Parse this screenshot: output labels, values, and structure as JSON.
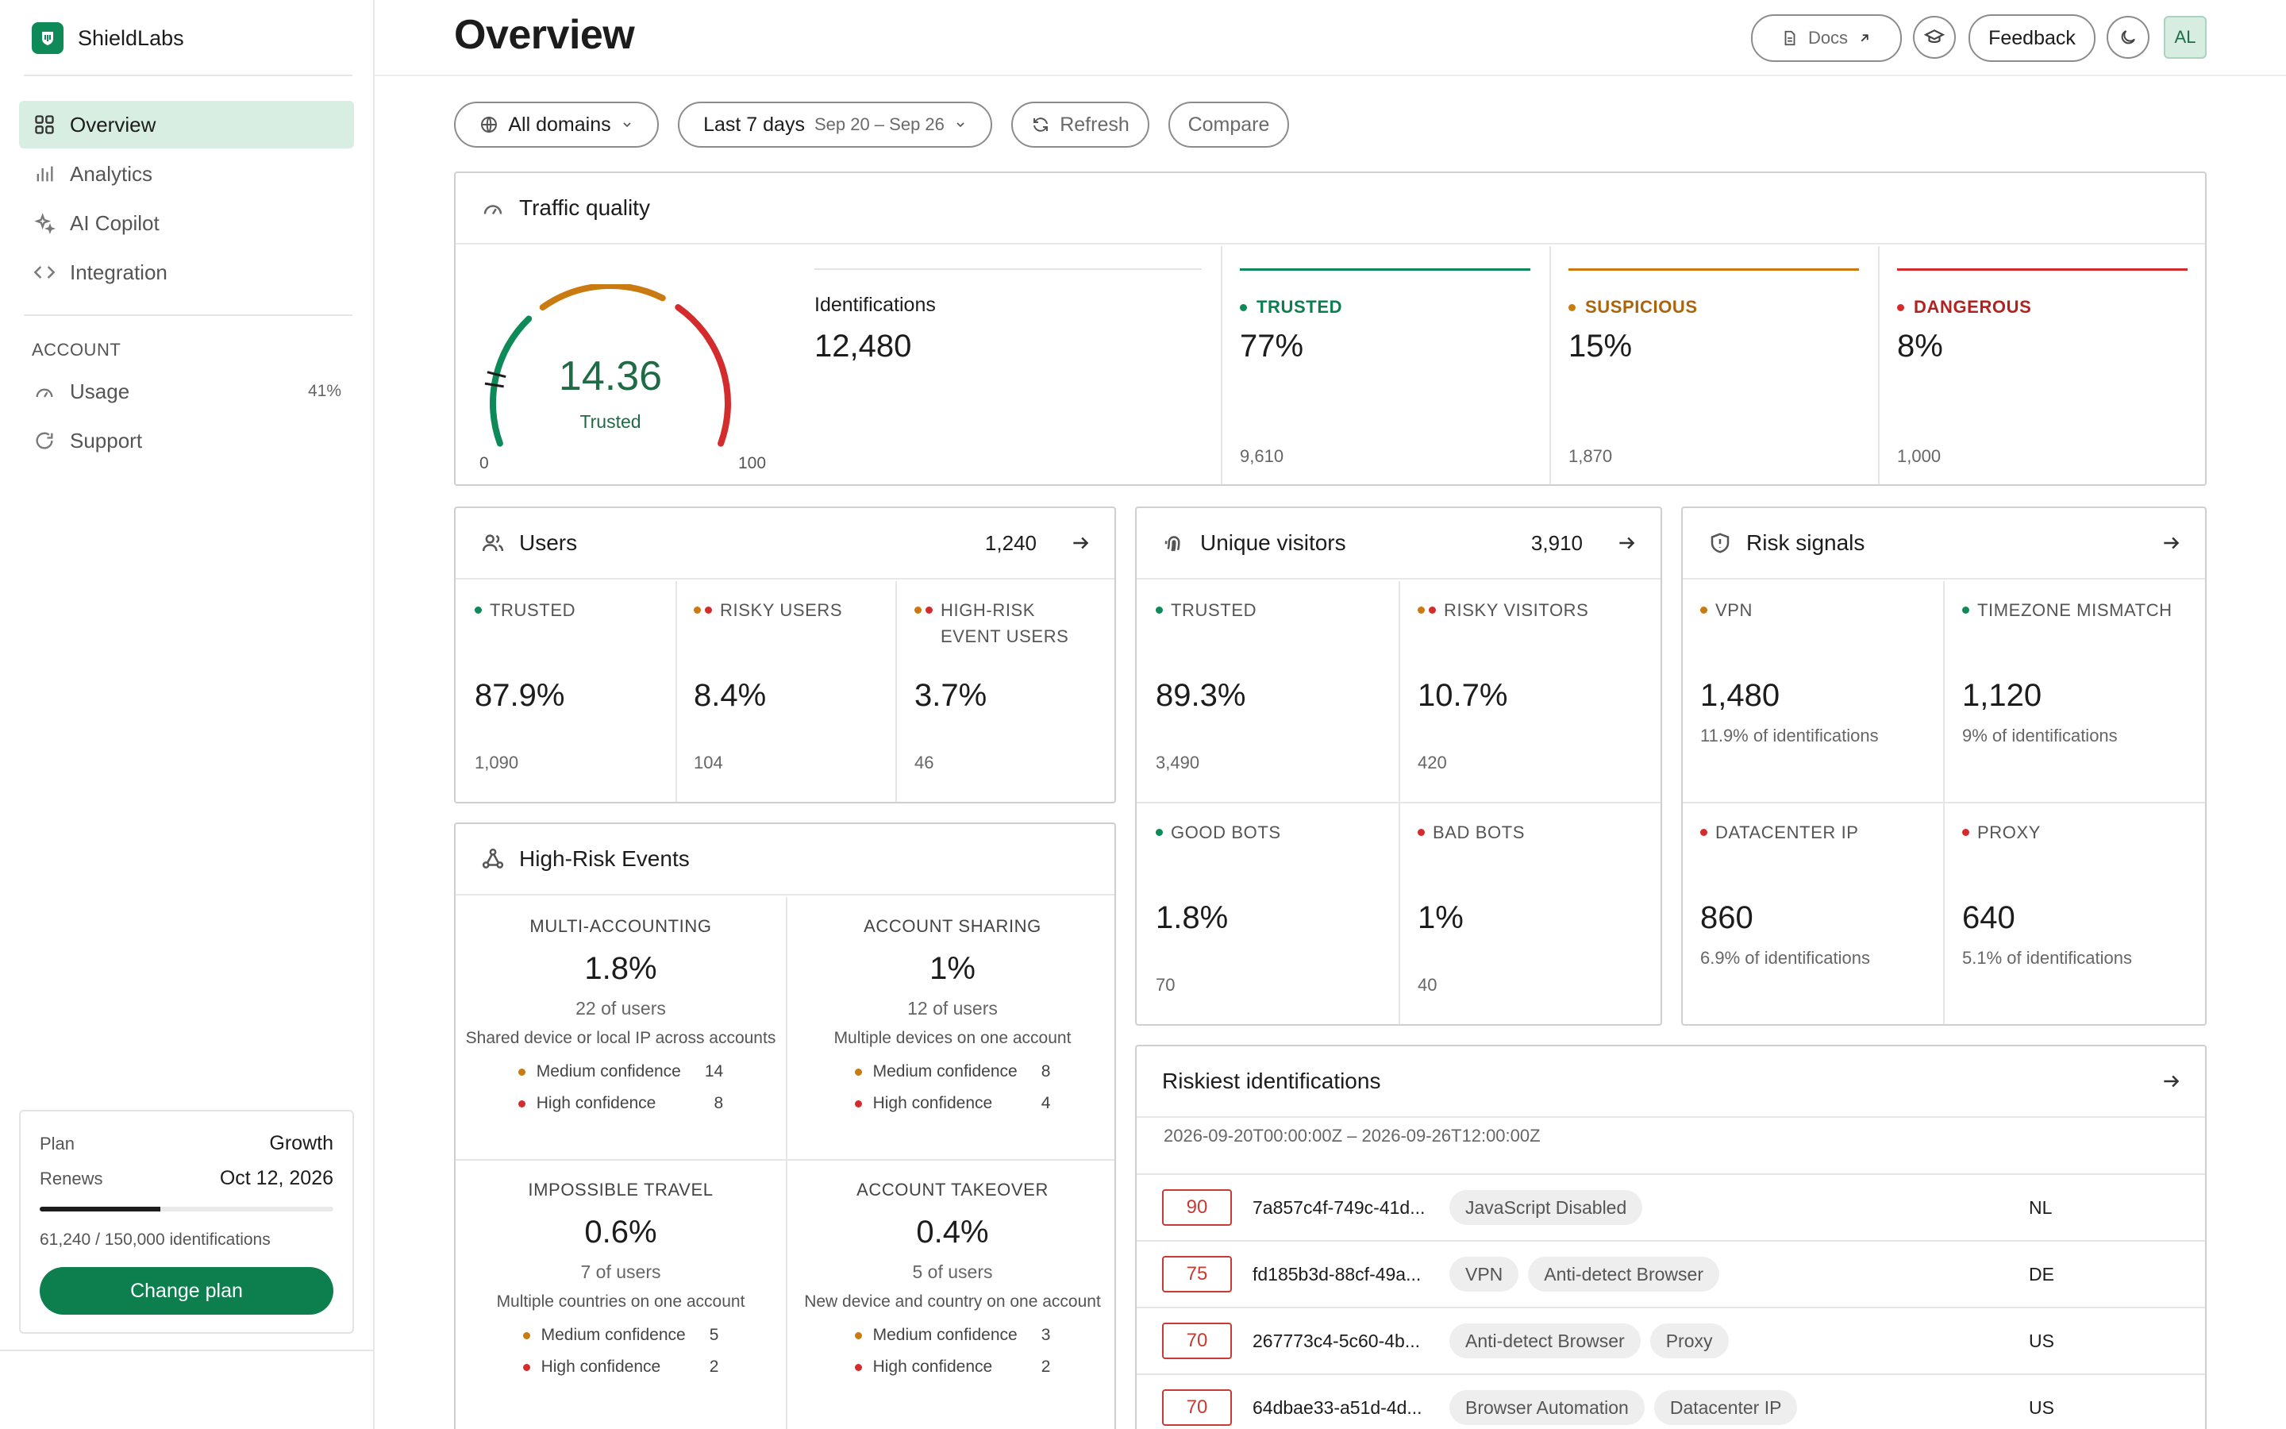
{
  "app": {
    "name": "ShieldLabs"
  },
  "sidebar": {
    "items": [
      {
        "label": "Overview",
        "icon": "grid-icon"
      },
      {
        "label": "Analytics",
        "icon": "bar-chart-icon"
      },
      {
        "label": "AI Copilot",
        "icon": "sparkle-icon"
      },
      {
        "label": "Integration",
        "icon": "code-icon"
      }
    ],
    "account_section": "ACCOUNT",
    "account_items": [
      {
        "label": "Usage",
        "badge": "41%",
        "icon": "gauge-icon"
      },
      {
        "label": "Support",
        "icon": "support-icon"
      }
    ],
    "plan": {
      "plan_key": "Plan",
      "plan_value": "Growth",
      "renews_key": "Renews",
      "renews_value": "Oct 12, 2026",
      "usage_fraction": 0.41,
      "usage_text": "61,240 / 150,000 identifications",
      "button": "Change plan"
    }
  },
  "header": {
    "title": "Overview",
    "docs": "Docs",
    "feedback": "Feedback",
    "avatar": "AL"
  },
  "filters": {
    "domains": "All domains",
    "range_label": "Last 7 days",
    "range_dates": "Sep 20 – Sep 26",
    "refresh": "Refresh",
    "compare": "Compare"
  },
  "colors": {
    "trusted": "#0d8a57",
    "suspicious": "#c97a10",
    "dangerous": "#d42c2c"
  },
  "traffic_quality": {
    "title": "Traffic quality",
    "gauge": {
      "value": "14.36",
      "status": "Trusted",
      "min": "0",
      "max": "100",
      "score": 14.36
    },
    "identifications_label": "Identifications",
    "identifications_value": "12,480",
    "trusted": {
      "label": "TRUSTED",
      "pct": "77%",
      "count": "9,610"
    },
    "suspicious": {
      "label": "SUSPICIOUS",
      "pct": "15%",
      "count": "1,870"
    },
    "dangerous": {
      "label": "DANGEROUS",
      "pct": "8%",
      "count": "1,000"
    }
  },
  "users": {
    "title": "Users",
    "count": "1,240",
    "trusted": {
      "label": "TRUSTED",
      "pct": "87.9%",
      "count": "1,090"
    },
    "risky": {
      "label": "RISKY USERS",
      "pct": "8.4%",
      "count": "104"
    },
    "high_risk": {
      "label": "HIGH-RISK EVENT USERS",
      "pct": "3.7%",
      "count": "46"
    }
  },
  "visitors": {
    "title": "Unique visitors",
    "count": "3,910",
    "trusted": {
      "label": "TRUSTED",
      "pct": "89.3%",
      "count": "3,490"
    },
    "risky": {
      "label": "RISKY VISITORS",
      "pct": "10.7%",
      "count": "420"
    },
    "good_bots": {
      "label": "GOOD BOTS",
      "pct": "1.8%",
      "count": "70"
    },
    "bad_bots": {
      "label": "BAD BOTS",
      "pct": "1%",
      "count": "40"
    }
  },
  "risk_signals": {
    "title": "Risk signals",
    "vpn": {
      "label": "VPN",
      "value": "1,480",
      "sub": "11.9% of identifications"
    },
    "timezone": {
      "label": "TIMEZONE MISMATCH",
      "value": "1,120",
      "sub": "9% of identifications"
    },
    "datacenter": {
      "label": "DATACENTER IP",
      "value": "860",
      "sub": "6.9% of identifications"
    },
    "proxy": {
      "label": "PROXY",
      "value": "640",
      "sub": "5.1% of identifications"
    }
  },
  "high_risk_events": {
    "title": "High-Risk Events",
    "items": [
      {
        "label": "MULTI-ACCOUNTING",
        "pct": "1.8%",
        "users": "22 of users",
        "desc": "Shared device or local IP across accounts",
        "medium_label": "Medium confidence",
        "medium": "14",
        "high_label": "High confidence",
        "high": "8"
      },
      {
        "label": "ACCOUNT SHARING",
        "pct": "1%",
        "users": "12 of users",
        "desc": "Multiple devices on one account",
        "medium_label": "Medium confidence",
        "medium": "8",
        "high_label": "High confidence",
        "high": "4"
      },
      {
        "label": "IMPOSSIBLE TRAVEL",
        "pct": "0.6%",
        "users": "7 of users",
        "desc": "Multiple countries on one account",
        "medium_label": "Medium confidence",
        "medium": "5",
        "high_label": "High confidence",
        "high": "2"
      },
      {
        "label": "ACCOUNT TAKEOVER",
        "pct": "0.4%",
        "users": "5 of users",
        "desc": "New device and country on one account",
        "medium_label": "Medium confidence",
        "medium": "3",
        "high_label": "High confidence",
        "high": "2"
      }
    ]
  },
  "riskiest": {
    "title": "Riskiest identifications",
    "range": "2026-09-20T00:00:00Z – 2026-09-26T12:00:00Z",
    "rows": [
      {
        "score": "90",
        "id": "7a857c4f-749c-41d...",
        "tags": [
          "JavaScript Disabled"
        ],
        "country": "NL"
      },
      {
        "score": "75",
        "id": "fd185b3d-88cf-49a...",
        "tags": [
          "VPN",
          "Anti-detect Browser"
        ],
        "country": "DE"
      },
      {
        "score": "70",
        "id": "267773c4-5c60-4b...",
        "tags": [
          "Anti-detect Browser",
          "Proxy"
        ],
        "country": "US"
      },
      {
        "score": "70",
        "id": "64dbae33-a51d-4d...",
        "tags": [
          "Browser Automation",
          "Datacenter IP"
        ],
        "country": "US"
      }
    ]
  }
}
